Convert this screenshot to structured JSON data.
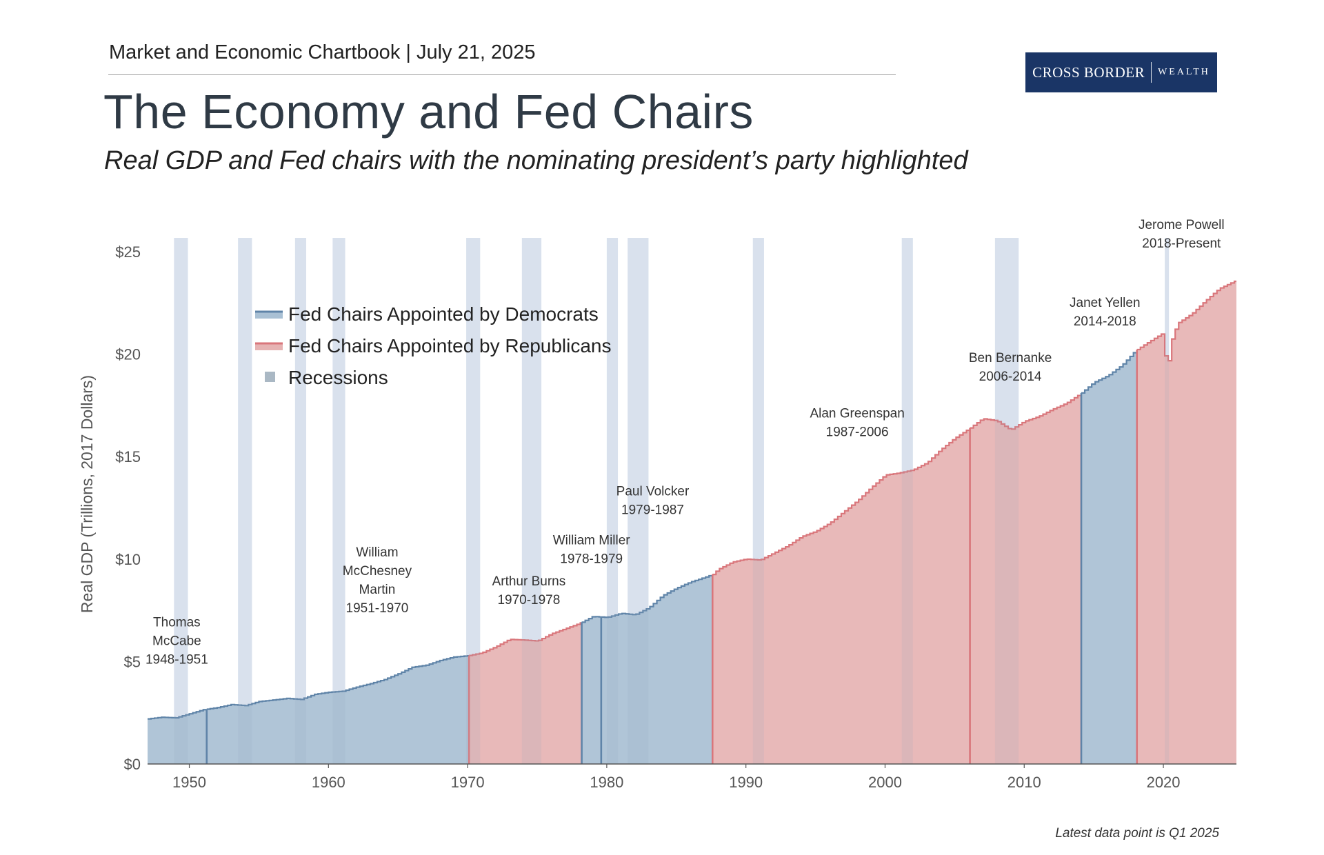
{
  "header": {
    "kicker": "Market and Economic Chartbook | July 21, 2025",
    "title": "The Economy and Fed Chairs",
    "subtitle": "Real GDP and Fed chairs with the nominating president’s party highlighted"
  },
  "logo": {
    "main": "CROSS BORDER",
    "sub": "WEALTH"
  },
  "footnote": "Latest data point is Q1 2025",
  "colors": {
    "democrat_fill": "#a9c0d4",
    "democrat_line": "#5f84a8",
    "republican_fill": "#e6b3b3",
    "republican_line": "#d9767b",
    "recession": "#d4e0ef",
    "legend_recession": "#aab8c4",
    "axis": "#555555",
    "logo_bg": "#1a3566"
  },
  "chart_data": {
    "type": "area",
    "title": "The Economy and Fed Chairs",
    "xlabel": "",
    "ylabel": "Real GDP (Trillions, 2017 Dollars)",
    "xlim": [
      1947,
      2025.25
    ],
    "ylim": [
      0,
      25
    ],
    "x_ticks": [
      1950,
      1960,
      1970,
      1980,
      1990,
      2000,
      2010,
      2020
    ],
    "y_ticks": [
      0,
      5,
      10,
      15,
      20,
      25
    ],
    "y_tick_labels": [
      "$0",
      "$5",
      "$10",
      "$15",
      "$20",
      "$25"
    ],
    "legend": [
      {
        "label": "Fed Chairs Appointed by Democrats",
        "kind": "democrat"
      },
      {
        "label": "Fed Chairs Appointed by Republicans",
        "kind": "republican"
      },
      {
        "label": "Recessions",
        "kind": "recession"
      }
    ],
    "recessions": [
      [
        1948.9,
        1949.9
      ],
      [
        1953.5,
        1954.5
      ],
      [
        1957.6,
        1958.4
      ],
      [
        1960.3,
        1961.2
      ],
      [
        1969.9,
        1970.9
      ],
      [
        1973.9,
        1975.3
      ],
      [
        1980.0,
        1980.8
      ],
      [
        1981.5,
        1983.0
      ],
      [
        1990.5,
        1991.3
      ],
      [
        2001.2,
        2002.0
      ],
      [
        2007.9,
        2009.6
      ],
      [
        2020.1,
        2020.4
      ]
    ],
    "gdp_series": {
      "x": [
        1947,
        1948,
        1949,
        1950,
        1951,
        1952,
        1953,
        1954,
        1955,
        1956,
        1957,
        1958,
        1959,
        1960,
        1961,
        1962,
        1963,
        1964,
        1965,
        1966,
        1967,
        1968,
        1969,
        1970,
        1971,
        1972,
        1973,
        1974,
        1975,
        1976,
        1977,
        1978,
        1979,
        1980,
        1981,
        1982,
        1983,
        1984,
        1985,
        1986,
        1987,
        1987.6,
        1988,
        1989,
        1990,
        1991,
        1992,
        1993,
        1994,
        1995,
        1996,
        1997,
        1998,
        1999,
        2000,
        2001,
        2002,
        2003,
        2004,
        2005,
        2006,
        2007,
        2008,
        2009,
        2010,
        2011,
        2012,
        2013,
        2014,
        2015,
        2016,
        2017,
        2018,
        2019,
        2019.9,
        2020.25,
        2020.5,
        2021,
        2022,
        2023,
        2024,
        2025.25
      ],
      "y": [
        2.2,
        2.28,
        2.25,
        2.45,
        2.65,
        2.75,
        2.9,
        2.85,
        3.05,
        3.12,
        3.2,
        3.15,
        3.4,
        3.5,
        3.55,
        3.75,
        3.92,
        4.12,
        4.4,
        4.72,
        4.82,
        5.05,
        5.22,
        5.28,
        5.42,
        5.72,
        6.08,
        6.05,
        6.0,
        6.35,
        6.6,
        6.85,
        7.2,
        7.15,
        7.35,
        7.28,
        7.62,
        8.22,
        8.58,
        8.88,
        9.1,
        9.25,
        9.5,
        9.85,
        10.0,
        9.95,
        10.3,
        10.65,
        11.1,
        11.35,
        11.75,
        12.3,
        12.85,
        13.5,
        14.1,
        14.2,
        14.35,
        14.7,
        15.35,
        15.9,
        16.35,
        16.85,
        16.75,
        16.3,
        16.72,
        16.95,
        17.3,
        17.6,
        18.05,
        18.62,
        18.95,
        19.45,
        20.18,
        20.62,
        21.0,
        19.1,
        20.55,
        21.5,
        21.95,
        22.6,
        23.2,
        23.6
      ]
    },
    "fed_chairs": [
      {
        "name": "Thomas McCabe",
        "label_lines": [
          "Thomas",
          "McCabe",
          "1948-1951"
        ],
        "start": 1947.0,
        "end": 1951.25,
        "party": "democrat"
      },
      {
        "name": "William McChesney Martin",
        "label_lines": [
          "William",
          "McChesney",
          "Martin",
          "1951-1970"
        ],
        "start": 1951.25,
        "end": 1970.1,
        "party": "democrat"
      },
      {
        "name": "Arthur Burns",
        "label_lines": [
          "Arthur Burns",
          "1970-1978"
        ],
        "start": 1970.1,
        "end": 1978.2,
        "party": "republican"
      },
      {
        "name": "William Miller",
        "label_lines": [
          "William Miller",
          "1978-1979"
        ],
        "start": 1978.2,
        "end": 1979.6,
        "party": "democrat"
      },
      {
        "name": "Paul Volcker",
        "label_lines": [
          "Paul Volcker",
          "1979-1987"
        ],
        "start": 1979.6,
        "end": 1987.6,
        "party": "democrat"
      },
      {
        "name": "Alan Greenspan",
        "label_lines": [
          "Alan Greenspan",
          "1987-2006"
        ],
        "start": 1987.6,
        "end": 2006.1,
        "party": "republican"
      },
      {
        "name": "Ben Bernanke",
        "label_lines": [
          "Ben Bernanke",
          "2006-2014"
        ],
        "start": 2006.1,
        "end": 2014.1,
        "party": "republican"
      },
      {
        "name": "Janet Yellen",
        "label_lines": [
          "Janet Yellen",
          "2014-2018"
        ],
        "start": 2014.1,
        "end": 2018.1,
        "party": "democrat"
      },
      {
        "name": "Jerome Powell",
        "label_lines": [
          "Jerome Powell",
          "2018-Present"
        ],
        "start": 2018.1,
        "end": 2025.25,
        "party": "republican"
      }
    ],
    "chair_label_anchors": [
      {
        "x": 1949.1,
        "y": 4.9
      },
      {
        "x": 1963.5,
        "y": 7.4
      },
      {
        "x": 1974.4,
        "y": 7.8
      },
      {
        "x": 1978.9,
        "y": 9.8
      },
      {
        "x": 1983.3,
        "y": 12.2
      },
      {
        "x": 1998.0,
        "y": 16.0
      },
      {
        "x": 2009.0,
        "y": 18.7
      },
      {
        "x": 2015.8,
        "y": 21.4
      },
      {
        "x": 2021.3,
        "y": 25.2
      }
    ]
  }
}
